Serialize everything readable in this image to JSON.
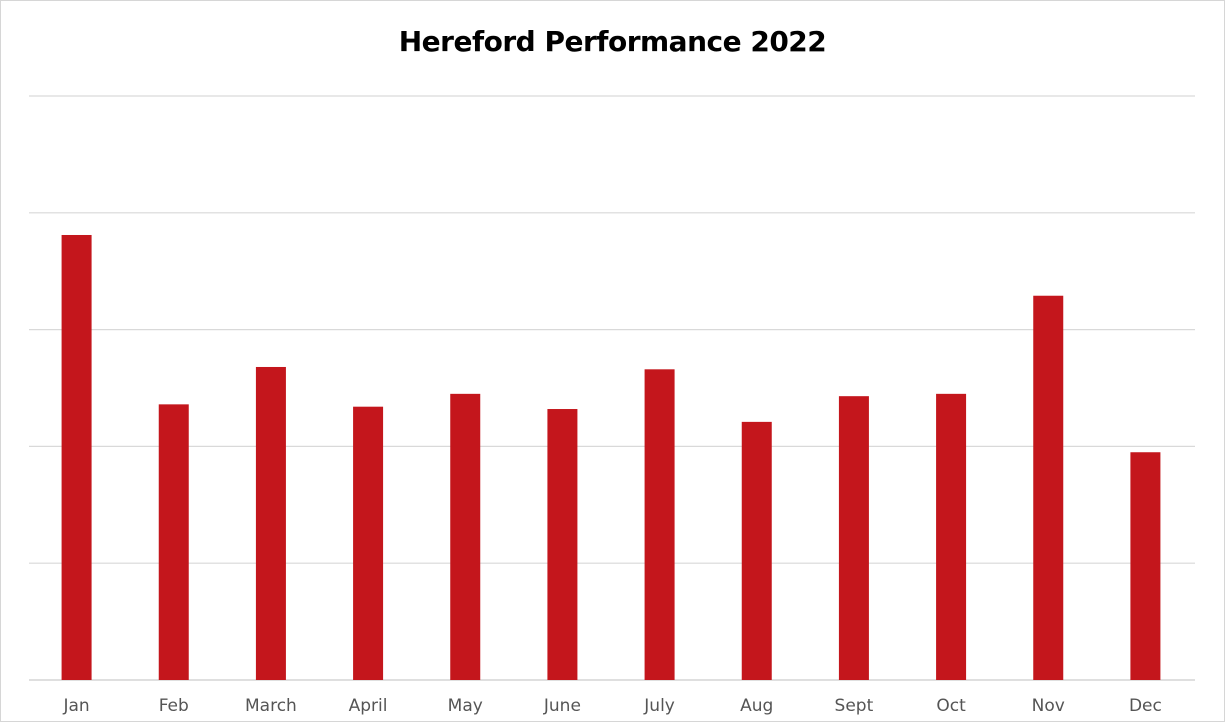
{
  "chart_data": {
    "type": "bar",
    "title": "Hereford Performance 2022",
    "xlabel": "",
    "ylabel": "",
    "categories": [
      "Jan",
      "Feb",
      "March",
      "April",
      "May",
      "June",
      "July",
      "Aug",
      "Sept",
      "Oct",
      "Nov",
      "Dec"
    ],
    "values": [
      3.81,
      2.36,
      2.68,
      2.34,
      2.45,
      2.32,
      2.66,
      2.21,
      2.43,
      2.45,
      3.29,
      1.95
    ],
    "ylim": [
      0,
      5
    ],
    "y_tick_count": 5,
    "y_tick_labels_visible": false,
    "grid": true,
    "legend": "none",
    "colors": {
      "bar": "#c4161c",
      "grid": "#d9d9d9",
      "axis": "#cccccc",
      "tick_text": "#555555",
      "title_text": "#000000"
    }
  }
}
